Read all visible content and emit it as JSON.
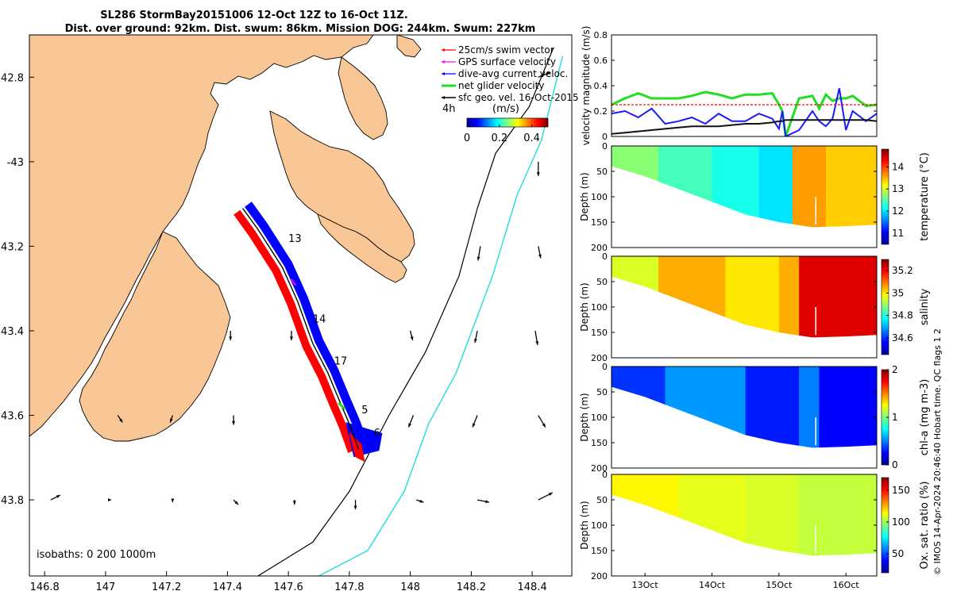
{
  "header": {
    "title_line1": "SL286 StormBay20151006 12-Oct 12Z to 16-Oct 11Z.",
    "title_line2": "Dist. over ground: 92km. Dist. swum: 86km. Mission DOG: 244km. Swum: 227km"
  },
  "colors": {
    "land": "#f9c696",
    "track_blue": "#0000ff",
    "track_red": "#ff0000",
    "green_series": "#22dd22",
    "shelf_cyan": "#22dddd",
    "swim_ref": "#ff0000",
    "geo_black": "#111111"
  },
  "chart_data": [
    {
      "id": "map",
      "type": "scatter",
      "xlabel": "",
      "ylabel": "",
      "xlim": [
        146.75,
        148.53
      ],
      "ylim": [
        -43.98,
        -42.7
      ],
      "xticks": [
        146.8,
        147,
        147.2,
        147.4,
        147.6,
        147.8,
        148,
        148.2,
        148.4
      ],
      "xtick_labels": [
        "146.8",
        "147",
        "147.2",
        "147.4",
        "147.6",
        "147.8",
        "148",
        "148.2",
        "148.4"
      ],
      "yticks": [
        -42.8,
        -43,
        -43.2,
        -43.4,
        -43.6,
        -43.8
      ],
      "ytick_labels": [
        "42.8",
        "-43",
        "43.2",
        "43.4",
        "43.6",
        "43.8"
      ],
      "legend": {
        "position": "top-right",
        "entries": [
          "25cm/s swim vector",
          "GPS surface velocity",
          "dive-avg current veloc.",
          "net glider velocity",
          "sfc geo. vel. 16-Oct-2015"
        ]
      },
      "legend_extra": {
        "time_label": "4h",
        "unit_label": "(m/s)"
      },
      "colorbar": {
        "ticks": [
          0,
          0.2,
          0.4
        ],
        "tick_labels": [
          "0",
          "0.2",
          "0.4"
        ],
        "range": [
          0,
          0.5
        ]
      },
      "track": [
        [
          147.45,
          -43.11
        ],
        [
          147.5,
          -43.16
        ],
        [
          147.58,
          -43.25
        ],
        [
          147.63,
          -43.33
        ],
        [
          147.68,
          -43.43
        ],
        [
          147.73,
          -43.5
        ],
        [
          147.77,
          -43.57
        ],
        [
          147.8,
          -43.62
        ],
        [
          147.83,
          -43.68
        ]
      ],
      "day_labels": [
        {
          "text": "13",
          "lon": 147.6,
          "lat": -43.19
        },
        {
          "text": "14",
          "lon": 147.68,
          "lat": -43.38
        },
        {
          "text": "17",
          "lon": 147.75,
          "lat": -43.48
        },
        {
          "text": "5",
          "lon": 147.84,
          "lat": -43.595
        },
        {
          "text": "6",
          "lon": 147.88,
          "lat": -43.65
        }
      ],
      "isobaths": {
        "label": "isobaths: 0   200  1000m",
        "200": [
          [
            147.5,
            -43.98
          ],
          [
            147.68,
            -43.9
          ],
          [
            147.8,
            -43.78
          ],
          [
            147.93,
            -43.6
          ],
          [
            148.05,
            -43.45
          ],
          [
            148.16,
            -43.27
          ],
          [
            148.22,
            -43.11
          ],
          [
            148.28,
            -42.98
          ],
          [
            148.39,
            -42.87
          ],
          [
            148.47,
            -42.73
          ]
        ],
        "1000": [
          [
            147.7,
            -43.98
          ],
          [
            147.86,
            -43.92
          ],
          [
            147.98,
            -43.78
          ],
          [
            148.06,
            -43.62
          ],
          [
            148.15,
            -43.5
          ],
          [
            148.27,
            -43.27
          ],
          [
            148.35,
            -43.08
          ],
          [
            148.43,
            -42.95
          ],
          [
            148.5,
            -42.75
          ]
        ]
      },
      "geo_vectors": [
        [
          148.42,
          -42.8,
          0.05,
          0.02
        ],
        [
          148.42,
          -43.0,
          0.0,
          -0.06
        ],
        [
          148.23,
          -43.2,
          -0.01,
          -0.06
        ],
        [
          148.42,
          -43.2,
          0.01,
          -0.05
        ],
        [
          147.41,
          -43.4,
          0.0,
          -0.04
        ],
        [
          147.61,
          -43.4,
          0.0,
          -0.04
        ],
        [
          148.0,
          -43.4,
          0.01,
          -0.04
        ],
        [
          148.22,
          -43.4,
          -0.01,
          -0.05
        ],
        [
          148.41,
          -43.4,
          0.01,
          -0.06
        ],
        [
          147.04,
          -43.6,
          0.02,
          -0.03
        ],
        [
          147.22,
          -43.6,
          -0.01,
          -0.03
        ],
        [
          147.42,
          -43.6,
          0.0,
          -0.04
        ],
        [
          148.01,
          -43.6,
          -0.02,
          -0.05
        ],
        [
          148.22,
          -43.6,
          -0.02,
          -0.05
        ],
        [
          148.42,
          -43.6,
          0.03,
          -0.05
        ],
        [
          146.82,
          -43.8,
          0.04,
          0.02
        ],
        [
          147.02,
          -43.8,
          0.0,
          0.0
        ],
        [
          147.22,
          -43.8,
          0.0,
          -0.01
        ],
        [
          147.42,
          -43.8,
          0.02,
          -0.02
        ],
        [
          147.62,
          -43.8,
          0.0,
          -0.02
        ],
        [
          147.82,
          -43.8,
          0.0,
          -0.04
        ],
        [
          148.02,
          -43.8,
          0.03,
          -0.01
        ],
        [
          148.22,
          -43.8,
          0.05,
          -0.01
        ],
        [
          148.42,
          -43.8,
          0.06,
          0.03
        ]
      ]
    },
    {
      "id": "velocity",
      "type": "line",
      "ylabel": "velocity magnitude (m/s)",
      "ylim": [
        0,
        0.8
      ],
      "yticks": [
        0,
        0.2,
        0.4,
        0.6,
        0.8
      ],
      "ytick_labels": [
        "0",
        "0.2",
        "0.4",
        "0.6",
        "0.8"
      ],
      "xlim": [
        12.5,
        16.46
      ],
      "x": [
        12.5,
        12.7,
        12.9,
        13.1,
        13.3,
        13.5,
        13.7,
        13.9,
        14.1,
        14.3,
        14.5,
        14.7,
        14.9,
        15.0,
        15.05,
        15.1,
        15.3,
        15.5,
        15.6,
        15.7,
        15.8,
        15.9,
        16.0,
        16.1,
        16.3,
        16.46
      ],
      "series": [
        {
          "name": "net glider velocity",
          "values": [
            0.25,
            0.3,
            0.34,
            0.3,
            0.3,
            0.3,
            0.32,
            0.35,
            0.33,
            0.3,
            0.33,
            0.33,
            0.34,
            0.25,
            0.2,
            0.0,
            0.3,
            0.32,
            0.22,
            0.33,
            0.28,
            0.3,
            0.3,
            0.32,
            0.24,
            0.25
          ]
        },
        {
          "name": "dive-avg current veloc.",
          "values": [
            0.18,
            0.2,
            0.15,
            0.22,
            0.1,
            0.12,
            0.15,
            0.1,
            0.18,
            0.12,
            0.12,
            0.18,
            0.14,
            0.06,
            0.2,
            0.0,
            0.05,
            0.2,
            0.12,
            0.08,
            0.14,
            0.38,
            0.05,
            0.2,
            0.12,
            0.18
          ]
        },
        {
          "name": "sfc geo. vel.",
          "values": [
            0.02,
            0.03,
            0.04,
            0.05,
            0.06,
            0.07,
            0.08,
            0.08,
            0.08,
            0.09,
            0.1,
            0.1,
            0.11,
            0.12,
            0.12,
            0.13,
            0.13,
            0.13,
            0.13,
            0.13,
            0.13,
            0.13,
            0.13,
            0.13,
            0.13,
            0.12
          ]
        },
        {
          "name": "25cm/s swim vector",
          "values": [
            0.25,
            0.25,
            0.25,
            0.25,
            0.25,
            0.25,
            0.25,
            0.25,
            0.25,
            0.25,
            0.25,
            0.25,
            0.25,
            0.25,
            0.25,
            0.25,
            0.25,
            0.25,
            0.25,
            0.25,
            0.25,
            0.25,
            0.25,
            0.25,
            0.25,
            0.25
          ]
        }
      ]
    },
    {
      "id": "temperature",
      "type": "heatmap",
      "ylabel": "Depth (m)",
      "colorbar_label": "temperature (°C)",
      "ylim": [
        200,
        0
      ],
      "yticks": [
        0,
        50,
        100,
        150,
        200
      ],
      "colorbar_ticks": [
        11,
        12,
        13,
        14
      ],
      "colorbar_range": [
        10.5,
        14.8
      ],
      "bottom_x": [
        12.5,
        13.0,
        13.5,
        14.0,
        14.5,
        15.0,
        15.5,
        16.0,
        16.46
      ],
      "bottom_depth": [
        40,
        60,
        85,
        110,
        135,
        150,
        160,
        158,
        155
      ],
      "segments": [
        {
          "x0": 12.5,
          "x1": 13.2,
          "value": 12.7
        },
        {
          "x0": 13.2,
          "x1": 14.0,
          "value": 12.4
        },
        {
          "x0": 14.0,
          "x1": 14.7,
          "value": 12.2
        },
        {
          "x0": 14.7,
          "x1": 15.2,
          "value": 12.0
        },
        {
          "x0": 15.2,
          "x1": 15.7,
          "value": 13.6
        },
        {
          "x0": 15.7,
          "x1": 16.46,
          "value": 13.4
        }
      ]
    },
    {
      "id": "salinity",
      "type": "heatmap",
      "ylabel": "Depth (m)",
      "colorbar_label": "salinity",
      "ylim": [
        200,
        0
      ],
      "yticks": [
        0,
        50,
        100,
        150,
        200
      ],
      "colorbar_ticks": [
        34.6,
        34.8,
        35,
        35.2
      ],
      "colorbar_ticklabels": [
        "34.6",
        "34.8",
        "35",
        "35.2"
      ],
      "colorbar_range": [
        34.45,
        35.3
      ],
      "bottom_x": [
        12.5,
        13.0,
        13.5,
        14.0,
        14.5,
        15.0,
        15.5,
        16.0,
        16.46
      ],
      "bottom_depth": [
        40,
        60,
        85,
        110,
        135,
        150,
        160,
        158,
        155
      ],
      "segments": [
        {
          "x0": 12.5,
          "x1": 13.2,
          "value": 34.95
        },
        {
          "x0": 13.2,
          "x1": 14.2,
          "value": 35.05
        },
        {
          "x0": 14.2,
          "x1": 15.0,
          "value": 35.0
        },
        {
          "x0": 15.0,
          "x1": 15.3,
          "value": 35.05
        },
        {
          "x0": 15.3,
          "x1": 16.46,
          "value": 35.22
        }
      ]
    },
    {
      "id": "chl",
      "type": "heatmap",
      "ylabel": "Depth (m)",
      "colorbar_label": "chl-a (mg m-3)",
      "ylim": [
        200,
        0
      ],
      "yticks": [
        0,
        50,
        100,
        150,
        200
      ],
      "colorbar_ticks": [
        0,
        1,
        2
      ],
      "colorbar_range": [
        0,
        2
      ],
      "bottom_x": [
        12.5,
        13.0,
        13.5,
        14.0,
        14.5,
        15.0,
        15.5,
        16.0,
        16.46
      ],
      "bottom_depth": [
        40,
        60,
        85,
        110,
        135,
        150,
        160,
        158,
        155
      ],
      "segments": [
        {
          "x0": 12.5,
          "x1": 13.3,
          "value": 0.35
        },
        {
          "x0": 13.3,
          "x1": 14.5,
          "value": 0.55
        },
        {
          "x0": 14.5,
          "x1": 15.3,
          "value": 0.3
        },
        {
          "x0": 15.3,
          "x1": 15.6,
          "value": 0.5
        },
        {
          "x0": 15.6,
          "x1": 16.46,
          "value": 0.25
        }
      ]
    },
    {
      "id": "oxygen",
      "type": "heatmap",
      "ylabel": "Depth (m)",
      "colorbar_label": "Ox. sat. ratio (%)",
      "ylim": [
        200,
        0
      ],
      "yticks": [
        0,
        50,
        100,
        150,
        200
      ],
      "colorbar_ticks": [
        50,
        100,
        150
      ],
      "colorbar_range": [
        20,
        170
      ],
      "bottom_x": [
        12.5,
        13.0,
        13.5,
        14.0,
        14.5,
        15.0,
        15.5,
        16.0,
        16.46
      ],
      "bottom_depth": [
        40,
        60,
        85,
        110,
        135,
        150,
        160,
        158,
        155
      ],
      "segments": [
        {
          "x0": 12.5,
          "x1": 13.5,
          "value": 115
        },
        {
          "x0": 13.5,
          "x1": 14.5,
          "value": 110
        },
        {
          "x0": 14.5,
          "x1": 15.3,
          "value": 108
        },
        {
          "x0": 15.3,
          "x1": 16.46,
          "value": 105
        }
      ],
      "xticks": [
        13,
        14,
        15,
        16
      ],
      "xtick_labels": [
        "13Oct",
        "14Oct",
        "15Oct",
        "16Oct"
      ]
    }
  ],
  "credit": "© IMOS 14-Apr-2024 20:46:40 Hobart time. QC flags 1  2"
}
